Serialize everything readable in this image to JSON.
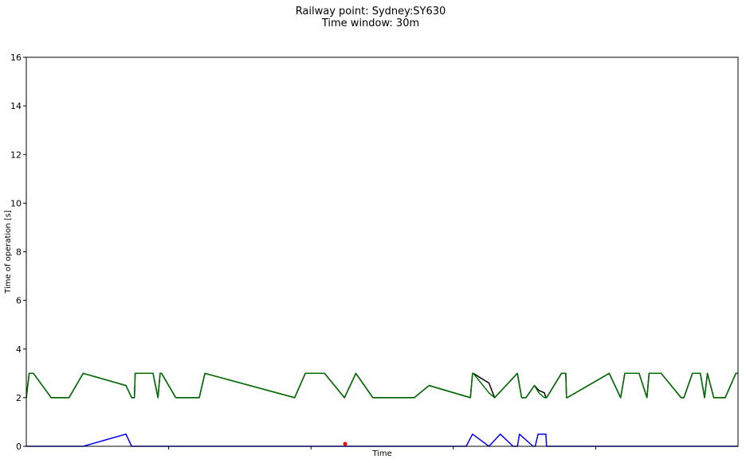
{
  "chart_data": {
    "type": "line",
    "title_lines": [
      "Railway point: Sydney:SY630",
      "Time window: 30m"
    ],
    "xlabel": "Time",
    "ylabel": "Time of operation [s]",
    "xlim": [
      0,
      100
    ],
    "ylim": [
      0,
      16
    ],
    "yticks": [
      0,
      2,
      4,
      6,
      8,
      10,
      12,
      14,
      16
    ],
    "x_tick_count": 4,
    "x_tick_labels_visible": false,
    "grid": false,
    "legend": "none",
    "series": [
      {
        "color": "#000000",
        "role": "max",
        "x": [
          0,
          0.4,
          1,
          3.5,
          6,
          8,
          14,
          14.8,
          15.2,
          15.3,
          17.8,
          18.5,
          18.8,
          19,
          21,
          24.3,
          25.1,
          37.7,
          39.2,
          41.9,
          44.7,
          46.3,
          48.7,
          54.5,
          56.6,
          62.4,
          62.7,
          62.8,
          65,
          65.8,
          69,
          69.3,
          69.6,
          70.2,
          71.4,
          72,
          72.8,
          73,
          73.1,
          75.2,
          75.8,
          75.9,
          76,
          81.9,
          83.5,
          84.1,
          86.1,
          87.2,
          87.5,
          89.2,
          92,
          92.4,
          93.6,
          94.7,
          95.3,
          95.7,
          96.6,
          98.2,
          99.7,
          100
        ],
        "y": [
          2,
          3,
          3,
          2,
          2,
          3,
          2.5,
          2,
          2,
          3,
          3,
          2,
          3,
          3,
          2,
          2,
          3,
          2,
          3,
          3,
          2,
          3,
          2,
          2,
          2.5,
          2,
          3,
          3,
          2.6,
          2,
          3,
          2.5,
          2,
          2,
          2.5,
          2.3,
          2.2,
          2,
          2,
          3,
          3,
          2,
          2,
          3,
          2,
          3,
          3,
          2,
          3,
          3,
          2,
          2,
          3,
          3,
          2,
          3,
          2,
          2,
          3,
          3
        ]
      },
      {
        "color": "#007000",
        "role": "mean",
        "x": [
          0,
          0.4,
          1,
          3.5,
          6,
          8,
          14,
          14.8,
          15.2,
          15.3,
          17.8,
          18.5,
          18.8,
          19,
          21,
          24.3,
          25.1,
          37.7,
          39.2,
          41.9,
          44.7,
          46.3,
          48.7,
          54.5,
          56.6,
          62.4,
          62.7,
          62.8,
          65,
          65.8,
          69,
          69.3,
          69.6,
          70.2,
          71.4,
          72,
          72.8,
          73,
          73.1,
          75.2,
          75.8,
          75.9,
          76,
          81.9,
          83.5,
          84.1,
          86.1,
          87.2,
          87.5,
          89.2,
          92,
          92.4,
          93.6,
          94.7,
          95.3,
          95.7,
          96.6,
          98.2,
          99.7,
          100
        ],
        "y": [
          2,
          3,
          3,
          2,
          2,
          3,
          2.5,
          2,
          2,
          3,
          3,
          2,
          3,
          3,
          2,
          2,
          3,
          2,
          3,
          3,
          2,
          3,
          2,
          2,
          2.5,
          2,
          3,
          3,
          2.2,
          2,
          3,
          2.5,
          2,
          2,
          2.5,
          2.2,
          2,
          2,
          2,
          3,
          3,
          2,
          2,
          3,
          2,
          3,
          3,
          2,
          3,
          3,
          2,
          2,
          3,
          3,
          2,
          3,
          2,
          2,
          3,
          3
        ]
      },
      {
        "color": "#0000ff",
        "role": "min",
        "x": [
          0,
          8,
          14,
          14.8,
          61.8,
          62.7,
          65,
          66.6,
          68.4,
          69,
          69.3,
          71.2,
          71.5,
          71.9,
          72,
          73,
          73.1,
          100
        ],
        "y": [
          0,
          0,
          0.5,
          0,
          0,
          0.5,
          0,
          0.5,
          0,
          0,
          0.5,
          0,
          0,
          0.5,
          0.5,
          0.5,
          0,
          0
        ]
      }
    ],
    "markers": [
      {
        "color": "#ff0000",
        "x": 44.8,
        "y": 0.1
      }
    ]
  }
}
